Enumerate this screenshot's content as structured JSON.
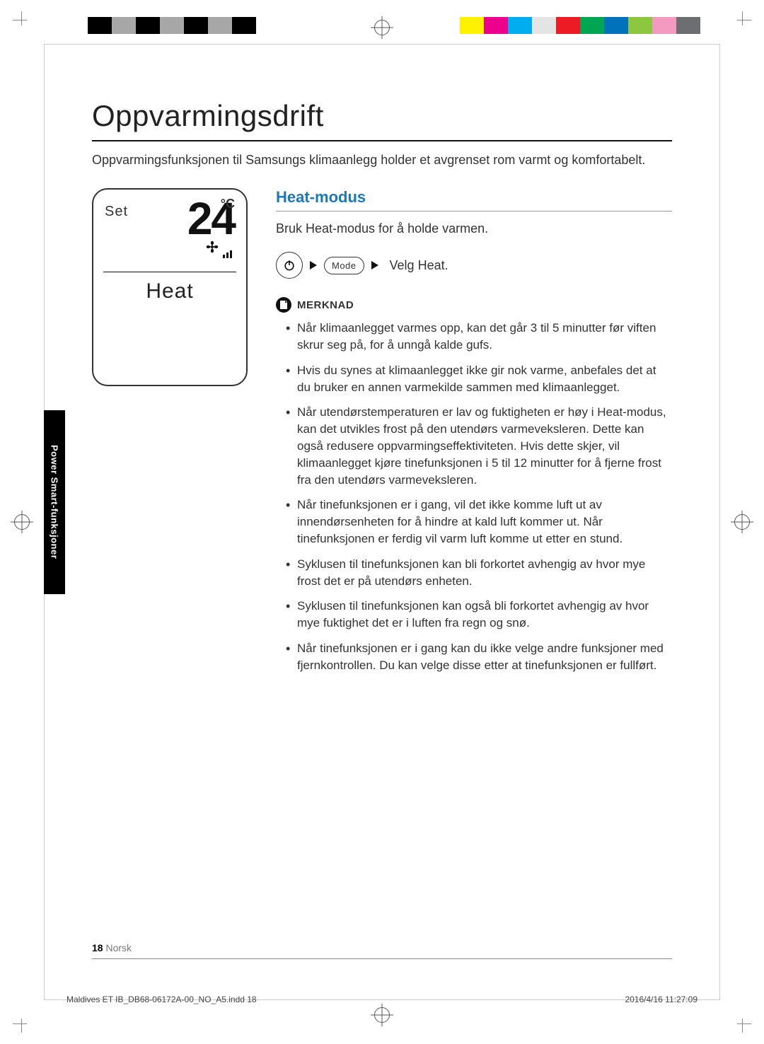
{
  "print": {
    "colorbar_left": [
      "#ffffff",
      "#000000",
      "#a7a7a7",
      "#000000",
      "#a7a7a7",
      "#000000",
      "#a7a7a7",
      "#000000",
      "#ffffff"
    ],
    "colorbar_right": [
      "#fff200",
      "#ec008c",
      "#00aeef",
      "#e4e4e4",
      "#ed1c24",
      "#00a651",
      "#0072bc",
      "#8dc63f",
      "#f49ac1",
      "#6d6e71"
    ],
    "file": "Maldives ET IB_DB68-06172A-00_NO_A5.indd   18",
    "datetime": "2016/4/16   11:27:09"
  },
  "page": {
    "number": "18",
    "language": "Norsk",
    "side_tab": "Power Smart-funksjoner"
  },
  "title": "Oppvarmingsdrift",
  "intro": "Oppvarmingsfunksjonen til Samsungs klimaanlegg holder et avgrenset rom varmt og komfortabelt.",
  "lcd": {
    "set_label": "Set",
    "temperature": "24",
    "unit": "°C",
    "mode": "Heat"
  },
  "section": {
    "heading": "Heat-modus",
    "heading_color": "#1d78b8",
    "description": "Bruk Heat-modus for å holde varmen.",
    "step": {
      "mode_button": "Mode",
      "action": "Velg Heat."
    },
    "note_label": "MERKNAD",
    "notes": [
      "Når klimaanlegget varmes opp, kan det går 3 til 5 minutter før viften skrur seg på, for å unngå kalde gufs.",
      "Hvis du synes at klimaanlegget ikke gir nok varme, anbefales det at du bruker en annen varmekilde sammen med klimaanlegget.",
      "Når utendørstemperaturen er lav og fuktigheten er høy i Heat-modus, kan det utvikles frost på den utendørs varmeveksleren. Dette kan også redusere oppvarmingseffektiviteten. Hvis dette skjer, vil klimaanlegget kjøre tinefunksjonen i 5 til 12 minutter for å fjerne frost fra den utendørs varmeveksleren.",
      "Når tinefunksjonen er i gang, vil det ikke komme luft ut av innendørsenheten for å hindre at kald luft kommer ut. Når tinefunksjonen er ferdig vil varm luft komme ut etter en stund.",
      "Syklusen til tinefunksjonen kan bli forkortet avhengig av hvor mye frost det er på utendørs enheten.",
      "Syklusen til tinefunksjonen kan også bli forkortet avhengig av hvor mye fuktighet det er i luften fra regn og snø.",
      "Når tinefunksjonen er i gang kan du ikke velge andre funksjoner med fjernkontrollen. Du kan velge disse etter at tinefunksjonen er fullført."
    ]
  }
}
